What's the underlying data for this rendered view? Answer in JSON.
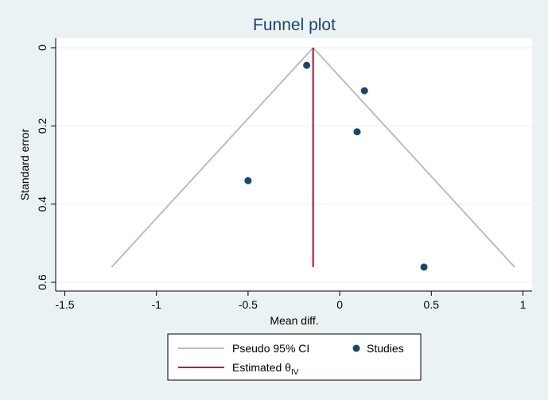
{
  "chart_data": {
    "type": "scatter",
    "title": "Funnel plot",
    "xlabel": "Mean diff.",
    "ylabel": "Standard error",
    "xlim": [
      -1.55,
      1.05
    ],
    "ylim": [
      0,
      0.6
    ],
    "y_reversed": true,
    "x_ticks": [
      -1.5,
      -1,
      -0.5,
      0,
      0.5,
      1
    ],
    "x_tick_labels": [
      "-1.5",
      "-1",
      "-0.5",
      "0",
      "0.5",
      "1"
    ],
    "y_ticks": [
      0,
      0.2,
      0.4,
      0.6
    ],
    "y_tick_labels": [
      "0",
      "0.2",
      "0.4",
      "0.6"
    ],
    "grid": "horizontal",
    "theta_iv": -0.145,
    "se_max": 0.561,
    "studies": [
      {
        "x": -0.18,
        "y": 0.045
      },
      {
        "x": 0.135,
        "y": 0.11
      },
      {
        "x": 0.095,
        "y": 0.215
      },
      {
        "x": -0.5,
        "y": 0.34
      },
      {
        "x": 0.46,
        "y": 0.561
      }
    ],
    "legend": {
      "placement": "bottom",
      "ci_label": "Pseudo 95% CI",
      "studies_label": "Studies",
      "estimate_label": "Estimated θ",
      "estimate_subscript": "IV"
    },
    "colors": {
      "background": "#eaf2f3",
      "plot_bg": "#ffffff",
      "points": "#1a476f",
      "ci_lines": "#bdbdbd",
      "estimate_line": "#c10534",
      "title": "#1a476f"
    }
  }
}
